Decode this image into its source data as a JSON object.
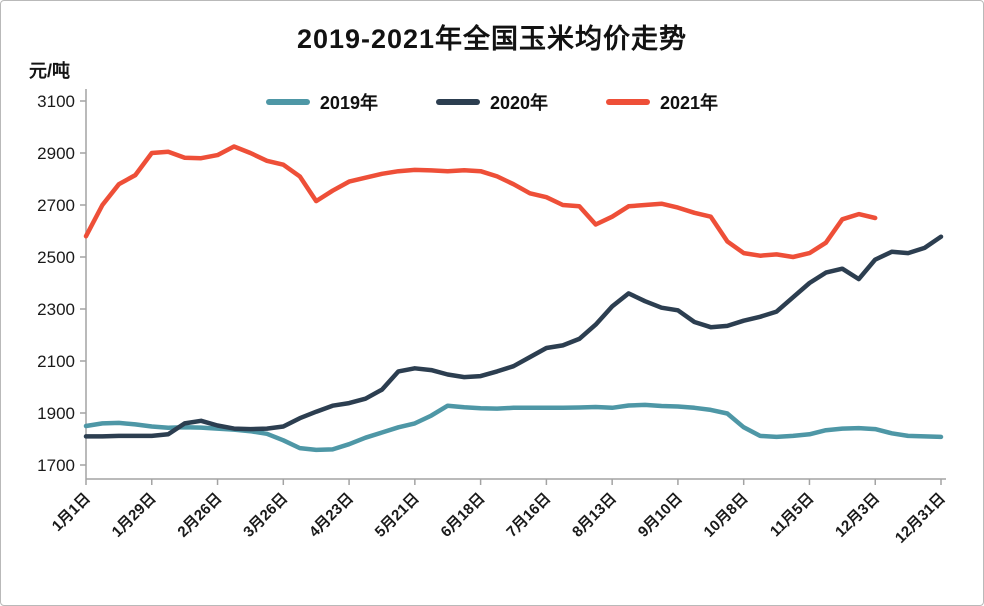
{
  "title": "2019-2021年全国玉米均价走势",
  "chart_data": {
    "type": "line",
    "title": "2019-2021年全国玉米均价走势",
    "ylabel": "元/吨",
    "ylim": [
      1700,
      3100
    ],
    "yticks": [
      3100,
      2900,
      2700,
      2500,
      2300,
      2100,
      1900,
      1700
    ],
    "grid": false,
    "legend_position": "top-center",
    "axis_color": "#a3a3a3",
    "tick_label_color": "#1a1a1a",
    "x_point_count": 53,
    "points_per_tick": 4,
    "x_tick_labels": [
      "1月1日",
      "1月29日",
      "2月26日",
      "3月26日",
      "4月23日",
      "5月21日",
      "6月18日",
      "7月16日",
      "8月13日",
      "9月10日",
      "10月8日",
      "11月5日",
      "12月3日",
      "12月31日"
    ],
    "series": [
      {
        "name": "2019年",
        "color": "#4e97a6",
        "values": [
          1850,
          1860,
          1862,
          1856,
          1848,
          1843,
          1845,
          1844,
          1840,
          1836,
          1830,
          1820,
          1795,
          1765,
          1758,
          1760,
          1780,
          1805,
          1825,
          1845,
          1860,
          1890,
          1928,
          1922,
          1918,
          1917,
          1920,
          1920,
          1920,
          1920,
          1921,
          1923,
          1920,
          1929,
          1931,
          1927,
          1925,
          1920,
          1912,
          1898,
          1845,
          1812,
          1808,
          1812,
          1818,
          1834,
          1840,
          1842,
          1838,
          1822,
          1812,
          1810,
          1808
        ]
      },
      {
        "name": "2020年",
        "color": "#2c3e50",
        "values": [
          1810,
          1810,
          1812,
          1812,
          1812,
          1818,
          1860,
          1870,
          1852,
          1840,
          1838,
          1840,
          1848,
          1880,
          1905,
          1928,
          1938,
          1955,
          1990,
          2060,
          2072,
          2065,
          2048,
          2038,
          2042,
          2060,
          2080,
          2115,
          2150,
          2160,
          2185,
          2240,
          2310,
          2360,
          2330,
          2305,
          2295,
          2250,
          2230,
          2235,
          2255,
          2270,
          2290,
          2345,
          2400,
          2440,
          2455,
          2415,
          2490,
          2520,
          2515,
          2535,
          2578
        ]
      },
      {
        "name": "2021年",
        "color": "#ee4f38",
        "values": [
          2580,
          2700,
          2780,
          2815,
          2900,
          2905,
          2882,
          2880,
          2892,
          2925,
          2900,
          2870,
          2855,
          2810,
          2715,
          2755,
          2790,
          2805,
          2820,
          2830,
          2835,
          2833,
          2830,
          2834,
          2830,
          2810,
          2780,
          2745,
          2730,
          2700,
          2695,
          2625,
          2655,
          2695,
          2700,
          2705,
          2690,
          2670,
          2655,
          2560,
          2515,
          2505,
          2510,
          2500,
          2515,
          2555,
          2645,
          2665,
          2650
        ]
      }
    ]
  }
}
